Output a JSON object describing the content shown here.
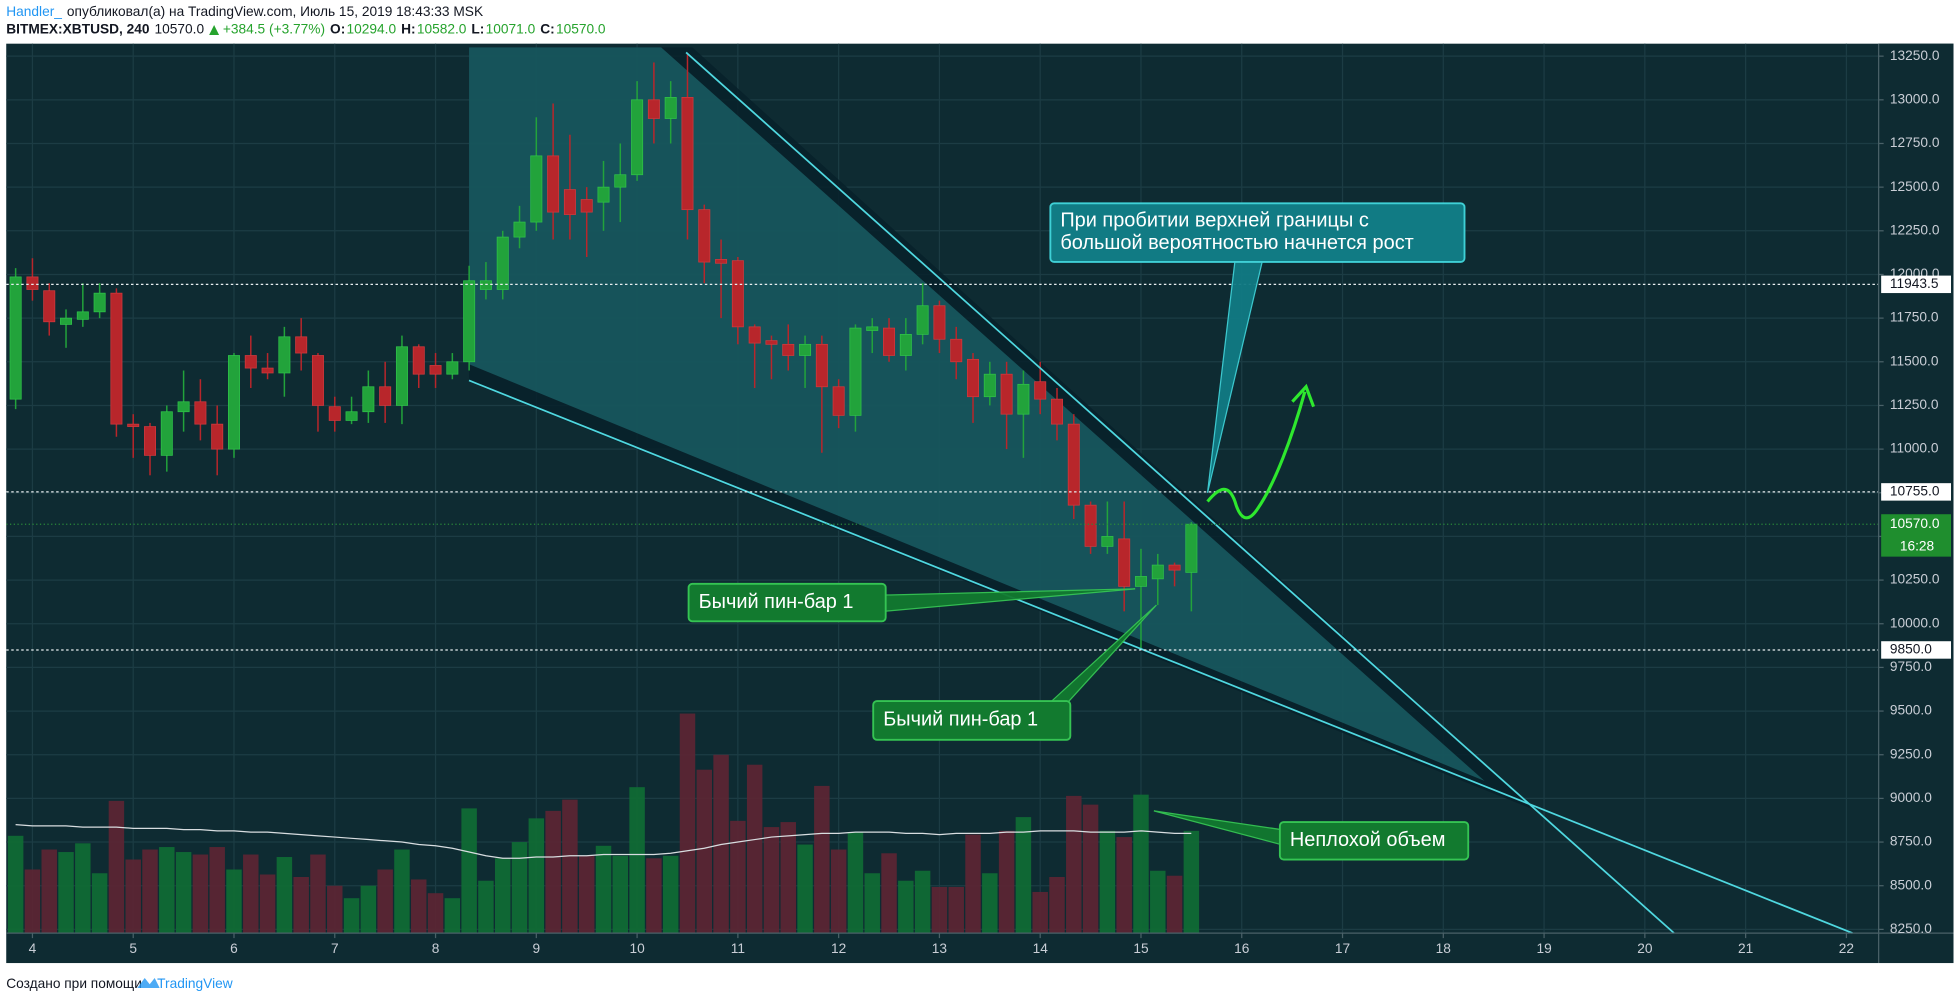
{
  "chart_data": {
    "type": "candlestick",
    "header": {
      "author": "Handler_",
      "published": "опубликовал(а) на TradingView.com, Июль 15, 2019 18:43:33 MSK",
      "symbol": "BITMEX:XBTUSD, 240",
      "last": "10570.0",
      "change": "+384.5 (+3.77%)",
      "o_label": "O:",
      "open": "10294.0",
      "h_label": "H:",
      "high": "10582.0",
      "l_label": "L:",
      "low": "10071.0",
      "c_label": "C:",
      "close": "10570.0"
    },
    "x": [
      3.8333,
      4,
      4.1667,
      4.3333,
      4.5,
      4.6667,
      4.8333,
      5,
      5.1667,
      5.3333,
      5.5,
      5.6667,
      5.8333,
      6,
      6.1667,
      6.3333,
      6.5,
      6.6667,
      6.8333,
      7,
      7.1667,
      7.3333,
      7.5,
      7.6667,
      7.8333,
      8,
      8.1667,
      8.3333,
      8.5,
      8.6667,
      8.8333,
      9,
      9.1667,
      9.3333,
      9.5,
      9.6667,
      9.8333,
      10,
      10.1667,
      10.3333,
      10.5,
      10.6667,
      10.8333,
      11,
      11.1667,
      11.3333,
      11.5,
      11.6667,
      11.8333,
      12,
      12.1667,
      12.3333,
      12.5,
      12.6667,
      12.8333,
      13,
      13.1667,
      13.3333,
      13.5,
      13.6667,
      13.8333,
      14,
      14.1667,
      14.3333,
      14.5,
      14.6667,
      14.8333,
      15,
      15.1667,
      15.3333,
      15.5
    ],
    "open": [
      11286,
      11986,
      11907,
      11714,
      11743,
      11786,
      11893,
      11143,
      11129,
      10964,
      11214,
      11271,
      11143,
      11000,
      11536,
      11464,
      11436,
      11643,
      11536,
      11243,
      11164,
      11214,
      11357,
      11250,
      11586,
      11479,
      11429,
      11500,
      11914,
      11914,
      12214,
      12300,
      12679,
      12486,
      12429,
      12414,
      12500,
      12571,
      13000,
      12893,
      13014,
      12371,
      12086,
      12079,
      11700,
      11621,
      11600,
      11536,
      11600,
      11357,
      11193,
      11679,
      11693,
      11536,
      11657,
      11821,
      11629,
      11514,
      11300,
      11429,
      11200,
      11386,
      11286,
      11143,
      10679,
      10443,
      10486,
      10214,
      10257,
      10336,
      10294
    ],
    "high": [
      12036,
      12093,
      11950,
      11800,
      11950,
      11950,
      11920,
      11200,
      11150,
      11250,
      11450,
      11400,
      11250,
      11550,
      11650,
      11550,
      11700,
      11750,
      11550,
      11300,
      11300,
      11450,
      11500,
      11650,
      11600,
      11550,
      11550,
      12050,
      12071,
      12250,
      12393,
      12900,
      12979,
      12800,
      12500,
      12650,
      12750,
      13107,
      13214,
      13107,
      13264,
      12400,
      12200,
      12100,
      11714,
      11650,
      11714,
      11650,
      11650,
      11400,
      11714,
      11750,
      11750,
      11750,
      11950,
      11850,
      11700,
      11550,
      11500,
      11500,
      11450,
      11500,
      11350,
      11200,
      10700,
      10700,
      10700,
      10429,
      10400,
      10350,
      10582
    ],
    "low": [
      11229,
      11850,
      11650,
      11580,
      11700,
      11750,
      11071,
      10950,
      10850,
      10871,
      11100,
      11050,
      10850,
      10950,
      11350,
      11400,
      11300,
      11450,
      11100,
      11100,
      11143,
      11150,
      11150,
      11143,
      11350,
      11350,
      11400,
      11450,
      11857,
      11857,
      12150,
      12250,
      12200,
      12200,
      12100,
      12250,
      12300,
      12536,
      12750,
      12750,
      12200,
      11950,
      11750,
      11600,
      11350,
      11400,
      11450,
      11350,
      10979,
      11120,
      11100,
      11550,
      11500,
      11450,
      11600,
      11550,
      11400,
      11150,
      11250,
      11000,
      10950,
      11200,
      11050,
      10600,
      10400,
      10400,
      10071,
      9850,
      10107,
      10214,
      10071
    ],
    "close": [
      11986,
      11914,
      11729,
      11750,
      11786,
      11893,
      11143,
      11129,
      10964,
      11214,
      11271,
      11143,
      11000,
      11536,
      11464,
      11436,
      11643,
      11550,
      11250,
      11164,
      11214,
      11357,
      11250,
      11586,
      11429,
      11429,
      11500,
      11964,
      11964,
      12214,
      12300,
      12679,
      12357,
      12343,
      12357,
      12500,
      12571,
      13000,
      12893,
      13014,
      12371,
      12071,
      12064,
      11700,
      11607,
      11600,
      11536,
      11600,
      11357,
      11193,
      11693,
      11700,
      11536,
      11657,
      11821,
      11629,
      11500,
      11300,
      11429,
      11200,
      11371,
      11286,
      11143,
      10679,
      10443,
      10500,
      10214,
      10271,
      10336,
      10307,
      10570
    ],
    "up_color": "#22a33b",
    "down_color": "#b8262b",
    "volume": [
      78,
      51,
      67,
      65,
      72,
      48,
      106,
      59,
      67,
      69,
      65,
      63,
      69,
      51,
      63,
      47,
      61,
      45,
      63,
      38,
      28,
      38,
      51,
      67,
      43,
      32,
      28,
      100,
      42,
      60,
      73,
      92,
      98,
      107,
      62,
      70,
      62,
      117,
      60,
      62,
      176,
      131,
      143,
      90,
      135,
      85,
      89,
      71,
      118,
      67,
      81,
      48,
      64,
      42,
      50,
      37,
      37,
      79,
      48,
      82,
      93,
      33,
      45,
      110,
      103,
      82,
      77,
      111,
      50,
      46,
      82
    ],
    "volume_ma": [
      87,
      86,
      86,
      86,
      85,
      85,
      85,
      84,
      84,
      84,
      83,
      83,
      82,
      82,
      81,
      81,
      80,
      79,
      78,
      77,
      76,
      75,
      74,
      73,
      71,
      70,
      68,
      65,
      62,
      60,
      60,
      61,
      61,
      62,
      62,
      63,
      63,
      63,
      63,
      64,
      66,
      68,
      71,
      73,
      75,
      77,
      78,
      79,
      80,
      80,
      81,
      81,
      81,
      80,
      80,
      79,
      80,
      80,
      80,
      81,
      81,
      82,
      82,
      82,
      81,
      81,
      81,
      82,
      81,
      80,
      80
    ],
    "volume_up_color": "#0f6e34",
    "volume_down_color": "#5e2533",
    "xlim": [
      3.74,
      22.32
    ],
    "xticks": [
      4,
      5,
      6,
      7,
      8,
      9,
      10,
      11,
      12,
      13,
      14,
      15,
      16,
      17,
      18,
      19,
      20,
      21,
      22
    ],
    "ylim": [
      8228.6,
      13321.4
    ],
    "yticks": [
      {
        "value": 8250,
        "label": "8250.0"
      },
      {
        "value": 8500,
        "label": "8500.0"
      },
      {
        "value": 8750,
        "label": "8750.0"
      },
      {
        "value": 9000,
        "label": "9000.0"
      },
      {
        "value": 9250,
        "label": "9250.0"
      },
      {
        "value": 9500,
        "label": "9500.0"
      },
      {
        "value": 9750,
        "label": "9750.0"
      },
      {
        "value": 10000,
        "label": "10000.0"
      },
      {
        "value": 10250,
        "label": "10250.0"
      },
      {
        "value": 10500,
        "label": "10500.0"
      },
      {
        "value": 10750,
        "label": "10750.0"
      },
      {
        "value": 11000,
        "label": "11000.0"
      },
      {
        "value": 11250,
        "label": "11250.0"
      },
      {
        "value": 11500,
        "label": "11500.0"
      },
      {
        "value": 11750,
        "label": "11750.0"
      },
      {
        "value": 12000,
        "label": "12000.0"
      },
      {
        "value": 12250,
        "label": "12250.0"
      },
      {
        "value": 12500,
        "label": "12500.0"
      },
      {
        "value": 12750,
        "label": "12750.0"
      },
      {
        "value": 13000,
        "label": "13000.0"
      },
      {
        "value": 13250,
        "label": "13250.0"
      }
    ],
    "grid": true,
    "levels": [
      {
        "value": 11943.5,
        "label": "11943.5"
      },
      {
        "value": 10755,
        "label": "10755.0"
      },
      {
        "value": 9850,
        "label": "9850.0"
      }
    ],
    "last_price": {
      "value": 10570,
      "label": "10570.0"
    },
    "countdown": "16:28",
    "annotations": [
      {
        "lines": [
          "При пробитии верхней границы с",
          "большой вероятностью начнется рост"
        ],
        "color": "#117b84",
        "border": "#3fd0d6"
      },
      {
        "lines": [
          "Бычий пин-бар 1"
        ],
        "color": "#127a2f",
        "border": "#35c453"
      },
      {
        "lines": [
          "Бычий пин-бар 1"
        ],
        "color": "#127a2f",
        "border": "#35c453"
      },
      {
        "lines": [
          "Неплохой объем"
        ],
        "color": "#127a2f",
        "border": "#35c453"
      }
    ],
    "footer": {
      "made_with": "Создано при помощи",
      "brand": "TradingView"
    }
  }
}
